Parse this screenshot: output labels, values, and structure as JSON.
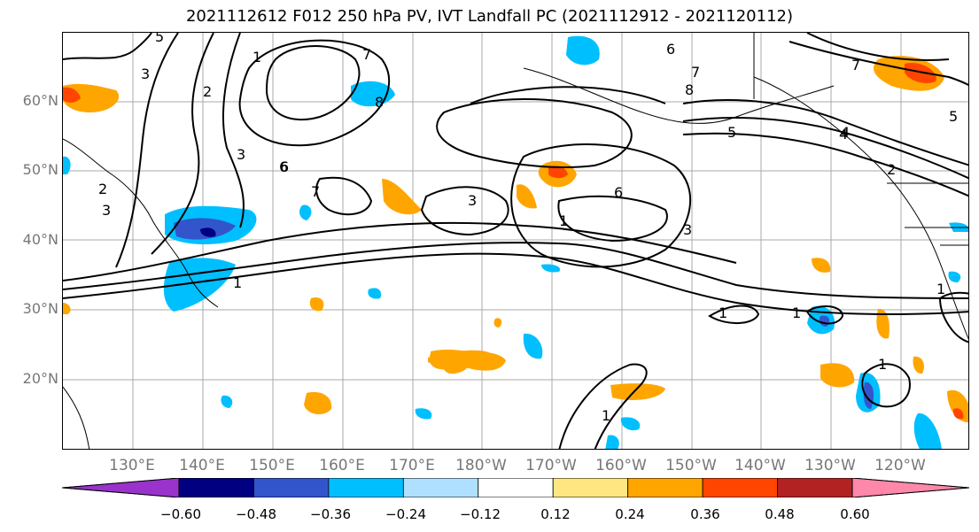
{
  "title": "2021112612 F012 250 hPa PV, IVT Landfall PC (2021112912 - 2021120112)",
  "lat_labels": [
    "60°N",
    "50°N",
    "40°N",
    "30°N",
    "20°N"
  ],
  "lon_labels": [
    "130°E",
    "140°E",
    "150°E",
    "160°E",
    "170°E",
    "180°W",
    "170°W",
    "160°W",
    "150°W",
    "140°W",
    "130°W",
    "120°W"
  ],
  "contour_labels": [
    "5",
    "1",
    "3",
    "2",
    "7",
    "6",
    "3",
    "2",
    "3",
    "8",
    "6",
    "7",
    "8",
    "5",
    "4",
    "2",
    "3",
    "7",
    "6",
    "1",
    "4",
    "6",
    "7",
    "3",
    "1",
    "1",
    "1",
    "1",
    "1",
    "5",
    "1"
  ],
  "colorbar": {
    "ticks": [
      "−0.60",
      "−0.48",
      "−0.36",
      "−0.24",
      "−0.12",
      "0.12",
      "0.24",
      "0.36",
      "0.48",
      "0.60"
    ],
    "colors": [
      "#9933cc",
      "#000080",
      "#3355cc",
      "#00bfff",
      "#b0e0ff",
      "#ffffff",
      "#ffe680",
      "#ffa500",
      "#ff4500",
      "#b22222",
      "#ff88aa"
    ]
  }
}
